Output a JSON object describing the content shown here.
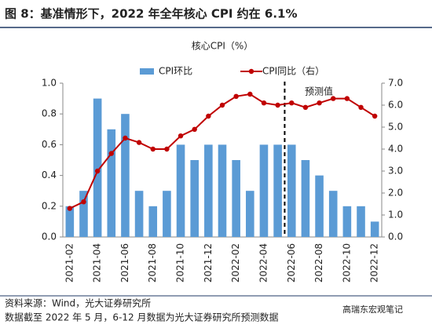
{
  "chart_data": {
    "type": "bar-line",
    "title": "图 8：基准情形下，2022 年全年核心 CPI 约在 6.1%",
    "y_label": "核心CPI（%）",
    "annotation": "预测值",
    "source": "资料来源：Wind，光大证券研究所",
    "note": "数据截至 2022 年 5 月，6-12 月数据为光大证券研究所预测数据",
    "watermark": "高瑞东宏观笔记",
    "categories": [
      "2021-02",
      null,
      "2021-04",
      null,
      "2021-06",
      null,
      "2021-08",
      null,
      "2021-10",
      null,
      "2021-12",
      null,
      "2022-02",
      null,
      "2022-04",
      null,
      "2022-06",
      null,
      "2022-08",
      null,
      "2022-10",
      null,
      "2022-12"
    ],
    "series": [
      {
        "name": "CPI环比",
        "type": "bar",
        "color": "#5b9bd5",
        "values": [
          0.2,
          0.3,
          0.9,
          0.7,
          0.8,
          0.3,
          0.2,
          0.3,
          0.6,
          0.5,
          0.6,
          0.6,
          0.5,
          0.3,
          0.6,
          0.6,
          0.6,
          0.5,
          0.4,
          0.3,
          0.2,
          0.2,
          0.1
        ]
      },
      {
        "name": "CPI同比（右）",
        "type": "line",
        "axis": "y2",
        "color": "#c00000",
        "values": [
          1.3,
          1.6,
          3.0,
          3.8,
          4.5,
          4.3,
          4.0,
          4.0,
          4.6,
          4.9,
          5.5,
          6.0,
          6.4,
          6.5,
          6.1,
          6.0,
          6.1,
          5.9,
          6.1,
          6.3,
          6.3,
          5.9,
          5.5
        ]
      }
    ],
    "ylim": [
      0,
      1
    ],
    "yticks": [
      {
        "value": 0,
        "label": "0.0"
      },
      {
        "value": 0.2,
        "label": "0.2"
      },
      {
        "value": 0.4,
        "label": "0.4"
      },
      {
        "value": 0.6,
        "label": "0.6"
      },
      {
        "value": 0.8,
        "label": "0.8"
      },
      {
        "value": 1,
        "label": "1.0"
      }
    ],
    "y2lim": [
      0,
      7
    ],
    "y2ticks": [
      {
        "value": 0,
        "label": "0.0"
      },
      {
        "value": 1,
        "label": "1.0"
      },
      {
        "value": 2,
        "label": "2.0"
      },
      {
        "value": 3,
        "label": "3.0"
      },
      {
        "value": 4,
        "label": "4.0"
      },
      {
        "value": 5,
        "label": "5.0"
      },
      {
        "value": 6,
        "label": "6.0"
      },
      {
        "value": 7,
        "label": "7.0"
      }
    ]
  }
}
